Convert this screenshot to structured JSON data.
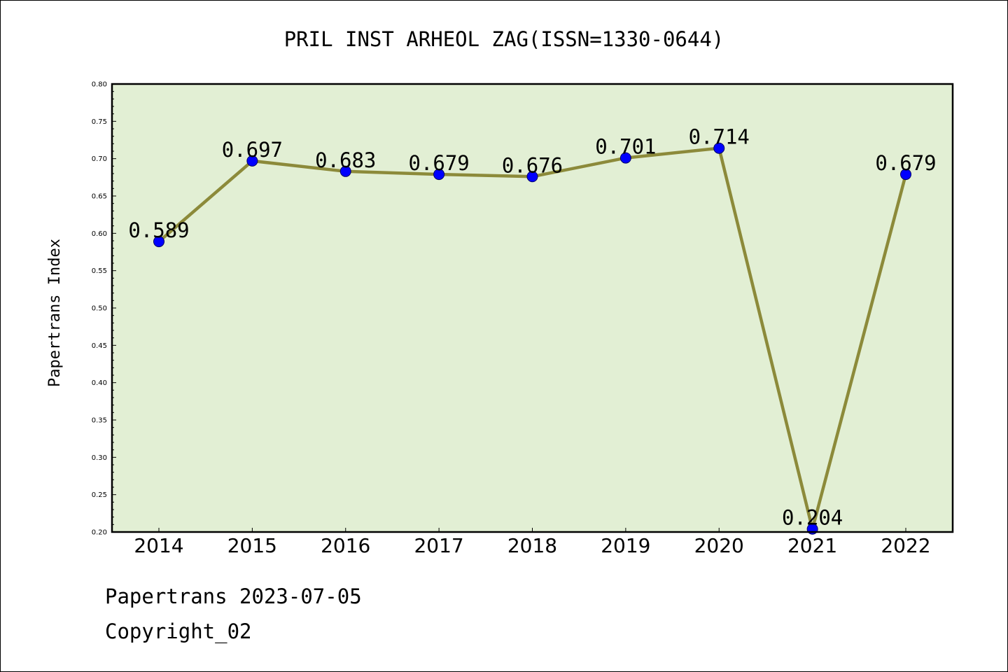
{
  "footer": {
    "date_line": "Papertrans 2023-07-05",
    "copyright_line": "Copyright_02"
  },
  "chart_data": {
    "type": "line",
    "title": "PRIL INST ARHEOL ZAG(ISSN=1330-0644)",
    "xlabel": "",
    "ylabel": "Papertrans Index",
    "categories": [
      "2014",
      "2015",
      "2016",
      "2017",
      "2018",
      "2019",
      "2020",
      "2021",
      "2022"
    ],
    "series": [
      {
        "values": [
          0.589,
          0.697,
          0.683,
          0.679,
          0.676,
          0.701,
          0.714,
          0.204,
          0.679
        ],
        "data_labels": [
          "0.589",
          "0.697",
          "0.683",
          "0.679",
          "0.676",
          "0.701",
          "0.714",
          "0.204",
          "0.679"
        ]
      }
    ],
    "ylim": [
      0.2,
      0.8
    ],
    "yticks": [
      "0.20",
      "0.25",
      "0.30",
      "0.35",
      "0.40",
      "0.45",
      "0.50",
      "0.55",
      "0.60",
      "0.65",
      "0.70",
      "0.75",
      "0.80"
    ],
    "grid": false,
    "legend": "none",
    "colors": {
      "plot_background": "#e2efd4",
      "line": "#8c8a3a",
      "marker": "#0000ff",
      "axis": "#000000"
    }
  }
}
